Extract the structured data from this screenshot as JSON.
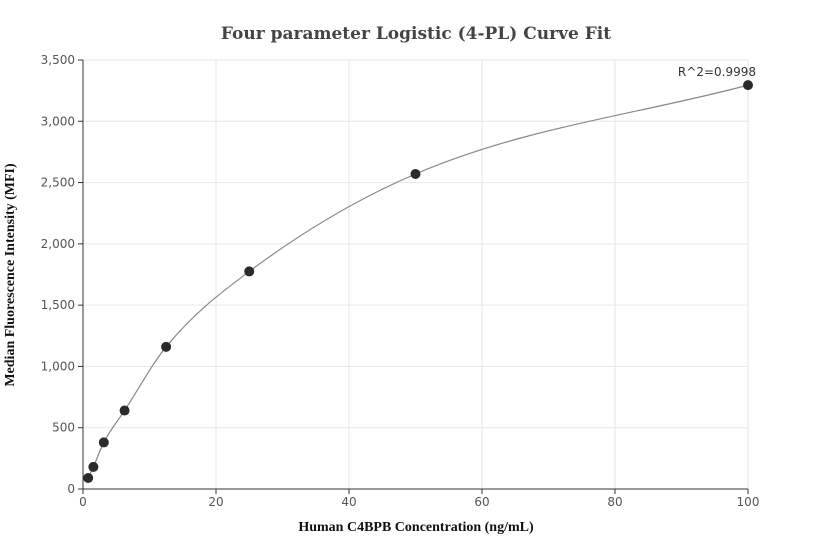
{
  "chart_data": {
    "type": "scatter",
    "title": "Four parameter Logistic (4-PL) Curve Fit",
    "xlabel": "Human C4BPB Concentration (ng/mL)",
    "ylabel": "Median Fluorescence Intensity (MFI)",
    "xlim": [
      0,
      100
    ],
    "ylim": [
      0,
      3500
    ],
    "xticks": [
      0,
      20,
      40,
      60,
      80,
      100
    ],
    "yticks": [
      0,
      500,
      1000,
      1500,
      2000,
      2500,
      3000,
      3500
    ],
    "xtick_labels": [
      "0",
      "20",
      "40",
      "60",
      "80",
      "100"
    ],
    "ytick_labels": [
      "0",
      "500",
      "1,000",
      "1,500",
      "2,000",
      "2,500",
      "3,000",
      "3,500"
    ],
    "grid": true,
    "series": [
      {
        "x": [
          0.78,
          1.56,
          3.13,
          6.25,
          12.5,
          25,
          50,
          100
        ],
        "y": [
          90,
          180,
          380,
          640,
          1160,
          1775,
          2570,
          3295
        ]
      }
    ],
    "annotation": "R^2=0.9998",
    "colors": {
      "points": "#2b2b2b",
      "curve": "#888888"
    }
  }
}
